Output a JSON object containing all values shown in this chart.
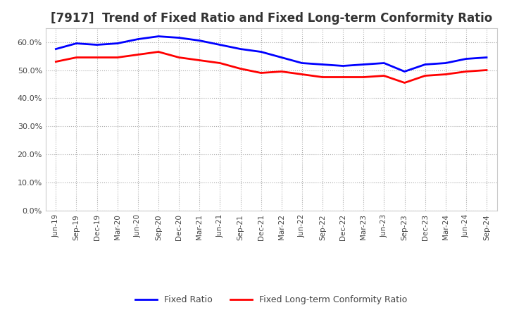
{
  "title": "[7917]  Trend of Fixed Ratio and Fixed Long-term Conformity Ratio",
  "x_labels": [
    "Jun-19",
    "Sep-19",
    "Dec-19",
    "Mar-20",
    "Jun-20",
    "Sep-20",
    "Dec-20",
    "Mar-21",
    "Jun-21",
    "Sep-21",
    "Dec-21",
    "Mar-22",
    "Jun-22",
    "Sep-22",
    "Dec-22",
    "Mar-23",
    "Jun-23",
    "Sep-23",
    "Dec-23",
    "Mar-24",
    "Jun-24",
    "Sep-24"
  ],
  "fixed_ratio": [
    57.5,
    59.5,
    59.0,
    59.5,
    61.0,
    62.0,
    61.5,
    60.5,
    59.0,
    57.5,
    56.5,
    54.5,
    52.5,
    52.0,
    51.5,
    52.0,
    52.5,
    49.5,
    52.0,
    52.5,
    54.0,
    54.5
  ],
  "fixed_lt_ratio": [
    53.0,
    54.5,
    54.5,
    54.5,
    55.5,
    56.5,
    54.5,
    53.5,
    52.5,
    50.5,
    49.0,
    49.5,
    48.5,
    47.5,
    47.5,
    47.5,
    48.0,
    45.5,
    48.0,
    48.5,
    49.5,
    50.0
  ],
  "fixed_ratio_color": "#0000ff",
  "fixed_lt_ratio_color": "#ff0000",
  "ylim": [
    0,
    65
  ],
  "yticks": [
    0,
    10,
    20,
    30,
    40,
    50,
    60
  ],
  "background_color": "#ffffff",
  "grid_color": "#aaaaaa",
  "title_fontsize": 12,
  "legend_fixed": "Fixed Ratio",
  "legend_lt": "Fixed Long-term Conformity Ratio"
}
